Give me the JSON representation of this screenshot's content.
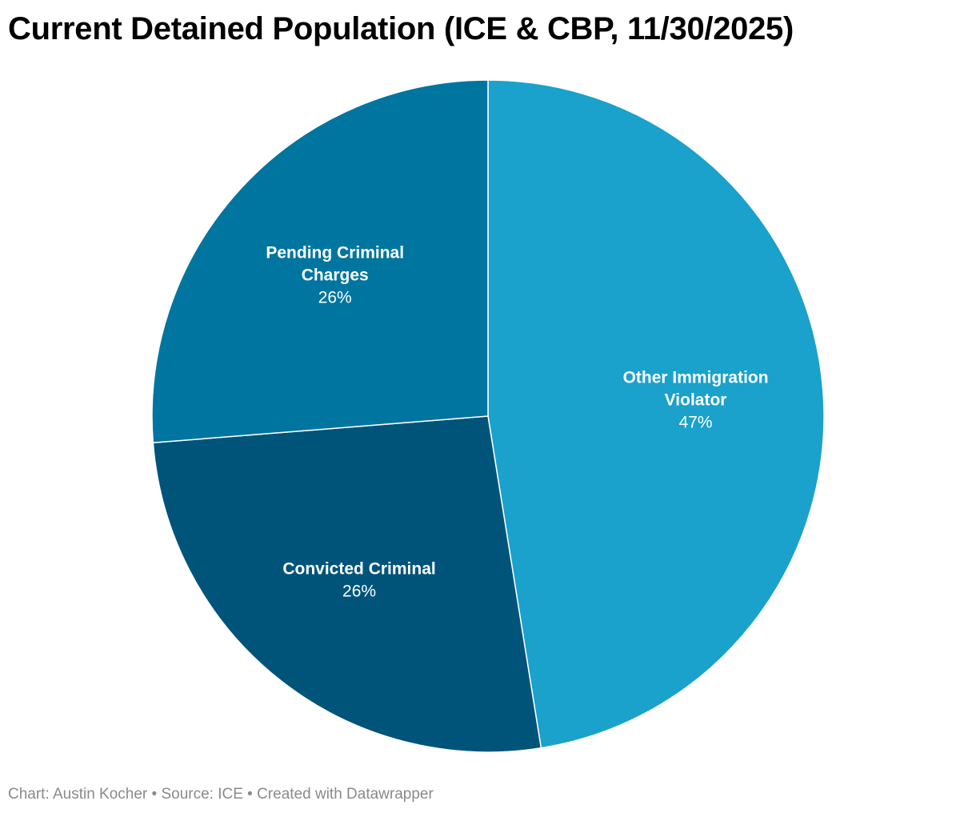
{
  "chart_data": {
    "type": "pie",
    "title": "Current Detained Population (ICE & CBP, 11/30/2025)",
    "start_angle_deg": 0,
    "direction": "clockwise",
    "slices": [
      {
        "label_lines": [
          "Other Immigration",
          "Violator"
        ],
        "value": 47,
        "value_label": "47%",
        "color": "#1aa1cc"
      },
      {
        "label_lines": [
          "Convicted Criminal"
        ],
        "value": 26,
        "value_label": "26%",
        "color": "#00547a"
      },
      {
        "label_lines": [
          "Pending Criminal",
          "Charges"
        ],
        "value": 26,
        "value_label": "26%",
        "color": "#00759f"
      }
    ]
  },
  "footer": {
    "text": "Chart: Austin Kocher • Source: ICE • Created with Datawrapper"
  }
}
